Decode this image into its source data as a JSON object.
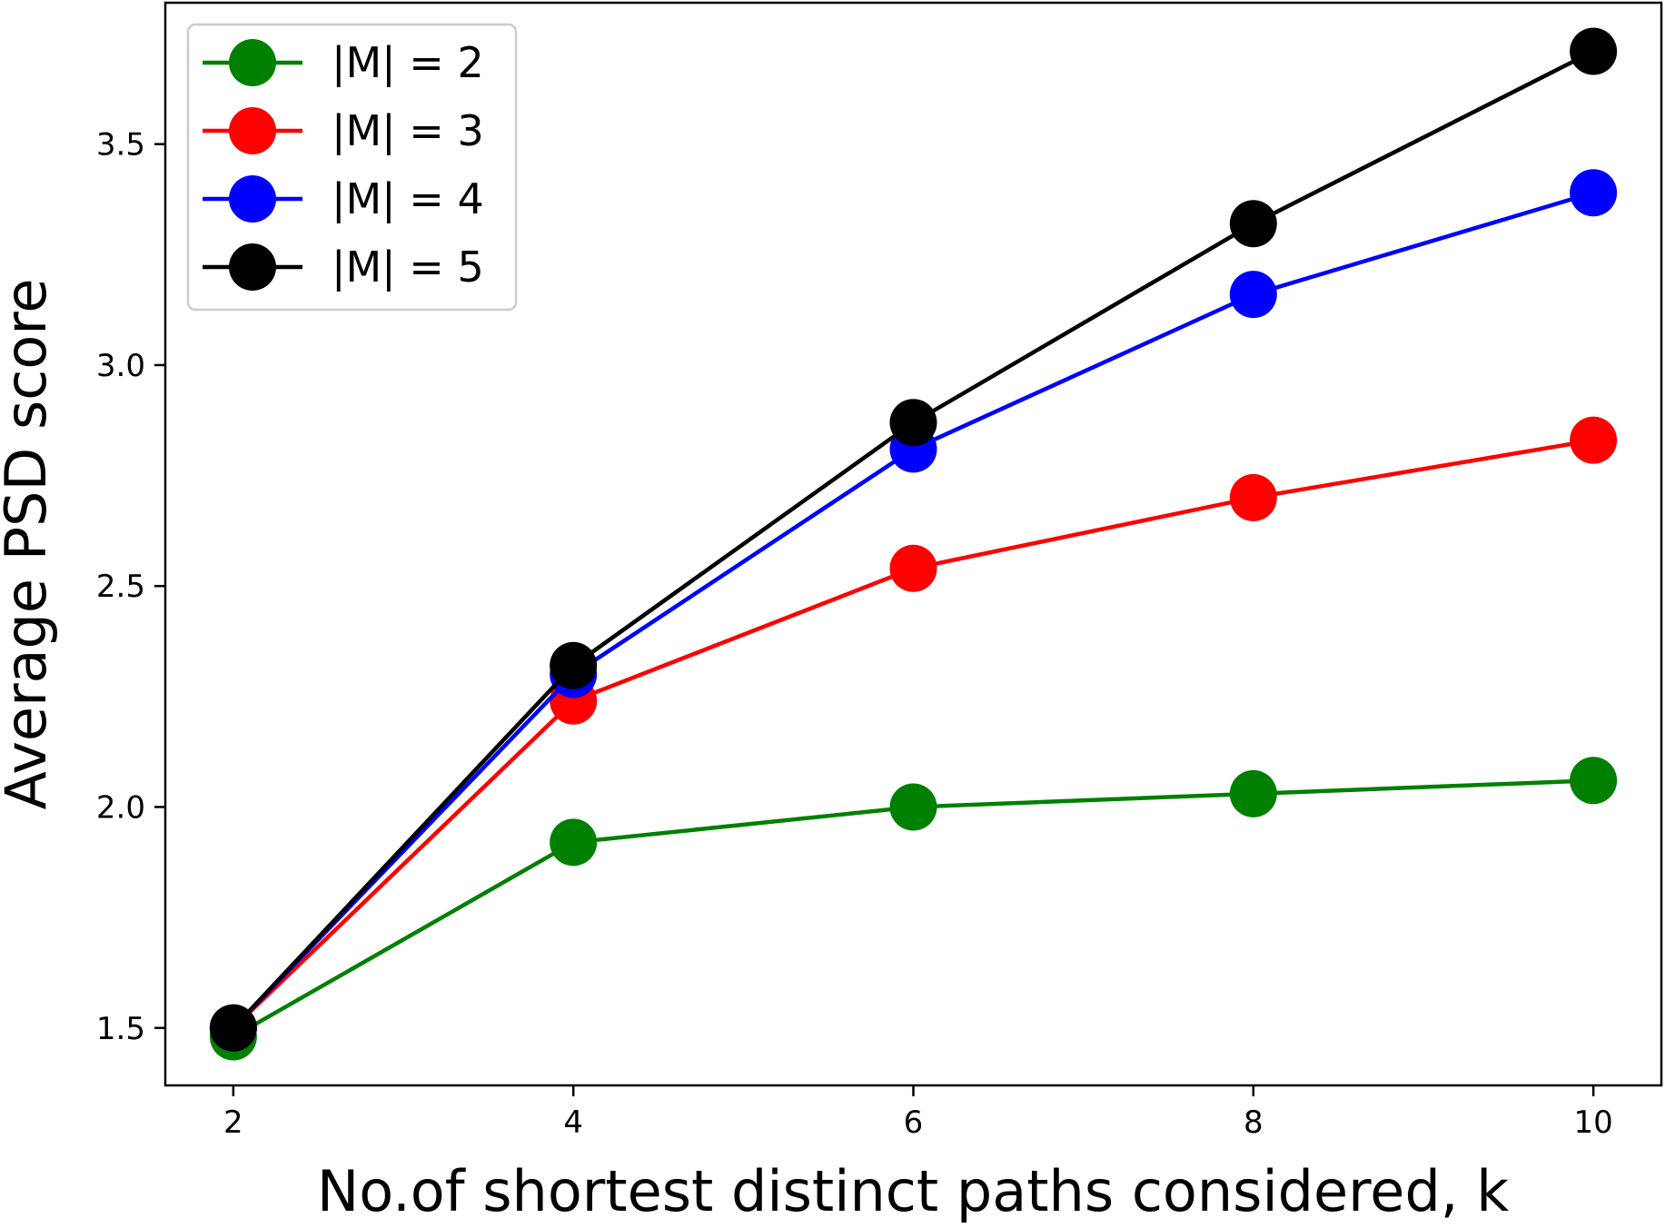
{
  "chart_data": {
    "type": "line",
    "xlabel": "No.of shortest distinct paths considered, k",
    "ylabel": "Average PSD score",
    "x": [
      2,
      4,
      6,
      8,
      10
    ],
    "xlim": [
      1.6,
      10.4
    ],
    "ylim": [
      1.37,
      3.82
    ],
    "xticks": [
      2,
      4,
      6,
      8,
      10
    ],
    "yticks": [
      1.5,
      2.0,
      2.5,
      3.0,
      3.5
    ],
    "grid": false,
    "legend_position": "top-left",
    "series": [
      {
        "name": "|M| = 2",
        "color": "#008000",
        "values": [
          1.48,
          1.92,
          2.0,
          2.03,
          2.06
        ]
      },
      {
        "name": "|M| = 3",
        "color": "#ff0000",
        "values": [
          1.5,
          2.24,
          2.54,
          2.7,
          2.83
        ]
      },
      {
        "name": "|M| = 4",
        "color": "#0000ff",
        "values": [
          1.5,
          2.3,
          2.81,
          3.16,
          3.39
        ]
      },
      {
        "name": "|M| = 5",
        "color": "#000000",
        "values": [
          1.5,
          2.32,
          2.87,
          3.32,
          3.71
        ]
      }
    ]
  }
}
